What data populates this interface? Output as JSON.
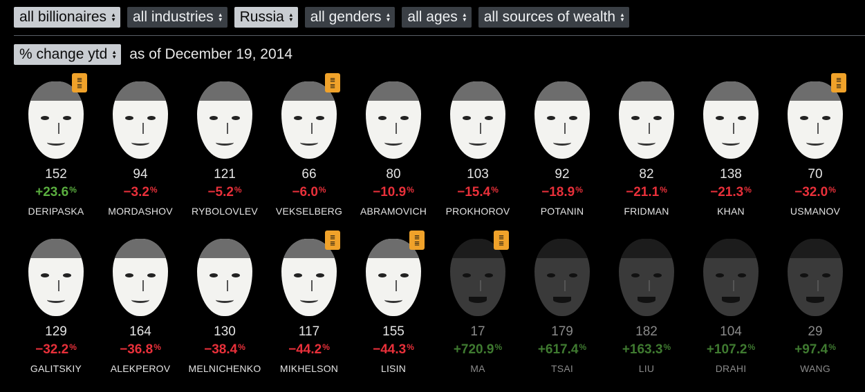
{
  "filters": [
    {
      "label": "all billionaires",
      "style": "light"
    },
    {
      "label": "all industries",
      "style": "dark"
    },
    {
      "label": "Russia",
      "style": "light"
    },
    {
      "label": "all genders",
      "style": "dark"
    },
    {
      "label": "all ages",
      "style": "dark"
    },
    {
      "label": "all sources of wealth",
      "style": "dark"
    }
  ],
  "metric_select": {
    "label": "% change ytd"
  },
  "as_of": "as of December 19, 2014",
  "colors": {
    "positive": "#5aae3f",
    "negative": "#e8303a",
    "dim_positive": "#3f7a30",
    "profile_icon": "#f0a22a"
  },
  "rows": [
    [
      {
        "rank": "152",
        "change": "+23.6",
        "pct": "%",
        "name": "DERIPASKA",
        "direction": "up",
        "dim": false,
        "has_profile": true
      },
      {
        "rank": "94",
        "change": "−3.2",
        "pct": "%",
        "name": "MORDASHOV",
        "direction": "down",
        "dim": false,
        "has_profile": false
      },
      {
        "rank": "121",
        "change": "−5.2",
        "pct": "%",
        "name": "RYBOLOVLEV",
        "direction": "down",
        "dim": false,
        "has_profile": false
      },
      {
        "rank": "66",
        "change": "−6.0",
        "pct": "%",
        "name": "VEKSELBERG",
        "direction": "down",
        "dim": false,
        "has_profile": true
      },
      {
        "rank": "80",
        "change": "−10.9",
        "pct": "%",
        "name": "ABRAMOVICH",
        "direction": "down",
        "dim": false,
        "has_profile": false
      },
      {
        "rank": "103",
        "change": "−15.4",
        "pct": "%",
        "name": "PROKHOROV",
        "direction": "down",
        "dim": false,
        "has_profile": false
      },
      {
        "rank": "92",
        "change": "−18.9",
        "pct": "%",
        "name": "POTANIN",
        "direction": "down",
        "dim": false,
        "has_profile": false
      },
      {
        "rank": "82",
        "change": "−21.1",
        "pct": "%",
        "name": "FRIDMAN",
        "direction": "down",
        "dim": false,
        "has_profile": false
      },
      {
        "rank": "138",
        "change": "−21.3",
        "pct": "%",
        "name": "KHAN",
        "direction": "down",
        "dim": false,
        "has_profile": false
      },
      {
        "rank": "70",
        "change": "−32.0",
        "pct": "%",
        "name": "USMANOV",
        "direction": "down",
        "dim": false,
        "has_profile": true
      }
    ],
    [
      {
        "rank": "129",
        "change": "−32.2",
        "pct": "%",
        "name": "GALITSKIY",
        "direction": "down",
        "dim": false,
        "has_profile": false
      },
      {
        "rank": "164",
        "change": "−36.8",
        "pct": "%",
        "name": "ALEKPEROV",
        "direction": "down",
        "dim": false,
        "has_profile": false
      },
      {
        "rank": "130",
        "change": "−38.4",
        "pct": "%",
        "name": "MELNICHENKO",
        "direction": "down",
        "dim": false,
        "has_profile": false
      },
      {
        "rank": "117",
        "change": "−44.2",
        "pct": "%",
        "name": "MIKHELSON",
        "direction": "down",
        "dim": false,
        "has_profile": true
      },
      {
        "rank": "155",
        "change": "−44.3",
        "pct": "%",
        "name": "LISIN",
        "direction": "down",
        "dim": false,
        "has_profile": true
      },
      {
        "rank": "17",
        "change": "+720.9",
        "pct": "%",
        "name": "MA",
        "direction": "up",
        "dim": true,
        "has_profile": true
      },
      {
        "rank": "179",
        "change": "+617.4",
        "pct": "%",
        "name": "TSAI",
        "direction": "up",
        "dim": true,
        "has_profile": false
      },
      {
        "rank": "182",
        "change": "+163.3",
        "pct": "%",
        "name": "LIU",
        "direction": "up",
        "dim": true,
        "has_profile": false
      },
      {
        "rank": "104",
        "change": "+107.2",
        "pct": "%",
        "name": "DRAHI",
        "direction": "up",
        "dim": true,
        "has_profile": false
      },
      {
        "rank": "29",
        "change": "+97.4",
        "pct": "%",
        "name": "WANG",
        "direction": "up",
        "dim": true,
        "has_profile": false
      }
    ]
  ]
}
